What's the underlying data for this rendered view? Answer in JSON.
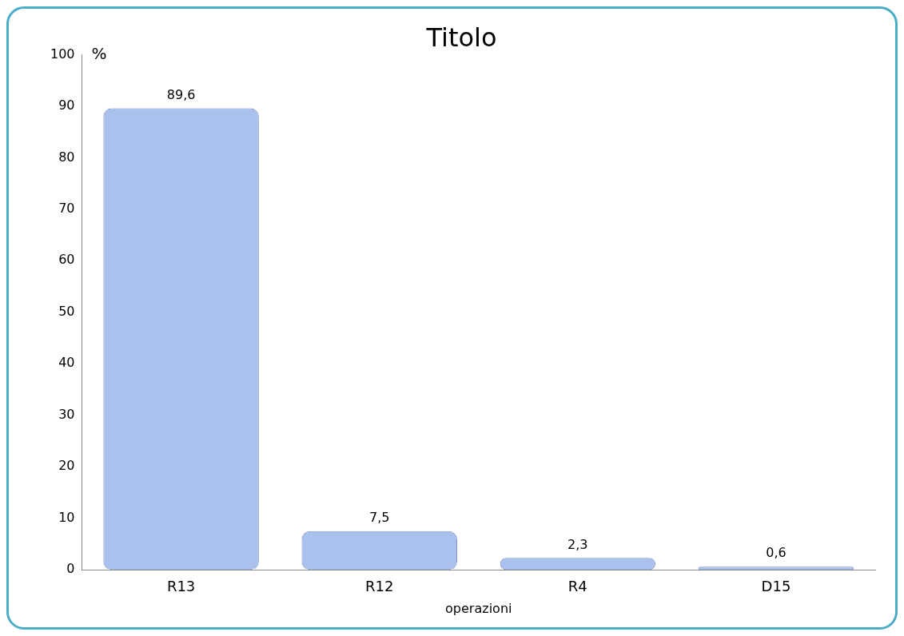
{
  "chart_data": {
    "type": "bar",
    "title": "Titolo",
    "xlabel": "operazioni",
    "ylabel": "%",
    "categories": [
      "R13",
      "R12",
      "R4",
      "D15"
    ],
    "values": [
      89.6,
      7.5,
      2.3,
      0.6
    ],
    "value_labels": [
      "89,6",
      "7,5",
      "2,3",
      "0,6"
    ],
    "color": "#a9c1ec",
    "ylim": [
      0,
      100
    ],
    "yticks": [
      0,
      10,
      20,
      30,
      40,
      50,
      60,
      70,
      80,
      90,
      100
    ],
    "grid": false,
    "legend": false
  }
}
